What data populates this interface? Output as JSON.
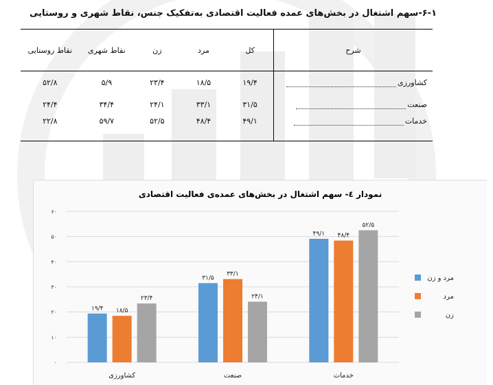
{
  "section_title": "۶-۱-سهم اشتغال در بخش‌های عمده فعالیت اقتصادی به‌تفکیک جنس، نقاط شهری و روستایی",
  "table": {
    "headers": [
      "شرح",
      "کل",
      "مرد",
      "زن",
      "نقاط شهری",
      "نقاط روستایی"
    ],
    "rows": [
      {
        "label": "کشاورزی",
        "values": [
          "۱۹/۴",
          "۱۸/۵",
          "۲۳/۴",
          "۵/۹",
          "۵۲/۸"
        ]
      },
      {
        "label": "صنعت",
        "values": [
          "۳۱/۵",
          "۳۳/۱",
          "۲۴/۱",
          "۳۴/۴",
          "۲۴/۴"
        ]
      },
      {
        "label": "خدمات",
        "values": [
          "۴۹/۱",
          "۴۸/۴",
          "۵۲/۵",
          "۵۹/۷",
          "۲۲/۸"
        ]
      }
    ]
  },
  "chart_data": {
    "type": "bar",
    "title": "نمودار ٤- سهم اشتغال در بخش‌های عمده‌ی فعالیت اقتصادی",
    "categories": [
      "کشاورزی",
      "صنعت",
      "خدمات"
    ],
    "series": [
      {
        "name": "مرد و زن",
        "values": [
          19.4,
          31.5,
          49.1
        ],
        "labels": [
          "۱۹/۴",
          "۳۱/۵",
          "۴۹/۱"
        ],
        "color": "#5B9BD5"
      },
      {
        "name": "مرد",
        "values": [
          18.5,
          33.1,
          48.4
        ],
        "labels": [
          "۱۸/۵",
          "۳۳/۱",
          "۴۸/۴"
        ],
        "color": "#ED7D31"
      },
      {
        "name": "زن",
        "values": [
          23.4,
          24.1,
          52.5
        ],
        "labels": [
          "۲۳/۴",
          "۲۴/۱",
          "۵۲/۵"
        ],
        "color": "#A5A5A5"
      }
    ],
    "ylim": [
      0,
      60
    ],
    "yticks": [
      0,
      10,
      20,
      30,
      40,
      50,
      60
    ],
    "ytick_labels": [
      "۰",
      "۱۰",
      "۲۰",
      "۳۰",
      "۴۰",
      "۵۰",
      "۶۰"
    ],
    "grid": true,
    "legend": "right"
  }
}
